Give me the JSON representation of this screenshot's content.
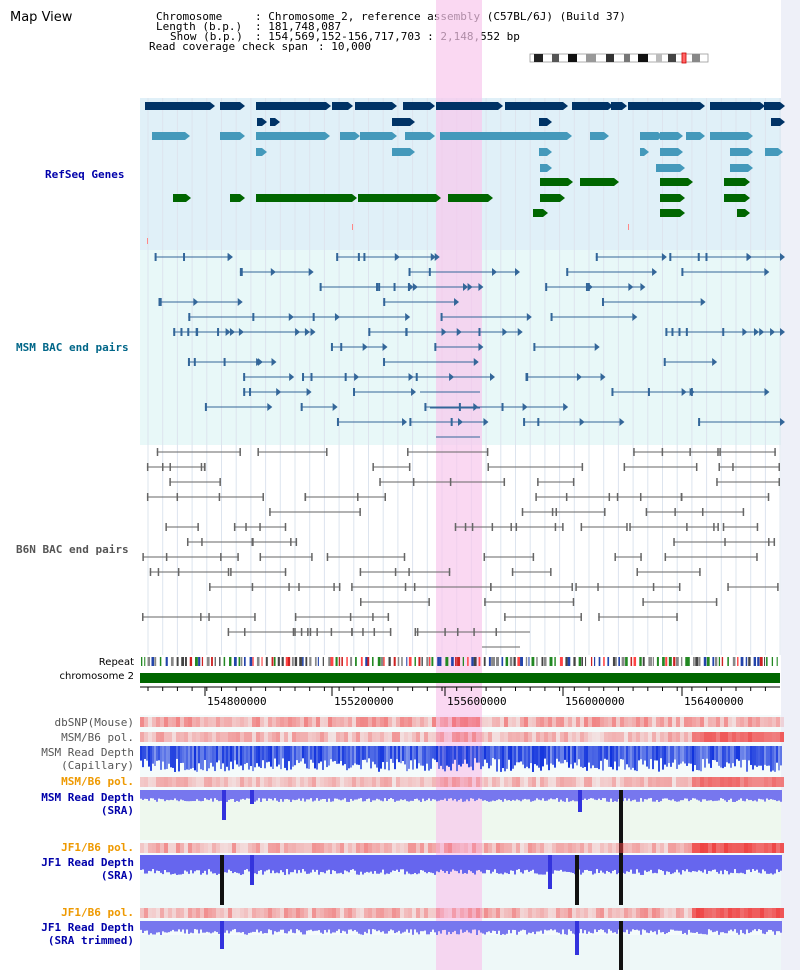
{
  "title": "Map View",
  "info": {
    "chromosome_label": "Chromosome",
    "chromosome_value": ": Chromosome 2, reference assembly (C57BL/6J) (Build 37)",
    "length_label": "Length (b.p.)",
    "length_value": ": 181,748,087",
    "show_label": "Show (b.p.)",
    "show_value": ": 154,569,152-156,717,703 : 2,148,552 bp",
    "read_coverage_label": "Read coverage check span",
    "read_coverage_value": ": 10,000"
  },
  "tracks": {
    "refseq": "RefSeq Genes",
    "msm_bac": "MSM BAC end pairs",
    "b6n_bac": "B6N BAC end pairs",
    "repeat": "Repeat",
    "chromosome": "chromosome 2"
  },
  "axis": {
    "ticks": [
      "154800000",
      "155200000",
      "155600000",
      "156000000",
      "156400000"
    ]
  },
  "signal_tracks": {
    "dbsnp": "dbSNP(Mouse)",
    "msm_b6_pol_1": "MSM/B6 pol.",
    "msm_read_depth_cap_1": "MSM Read Depth",
    "msm_read_depth_cap_2": "(Capillary)",
    "msm_b6_pol_2": "MSM/B6 pol.",
    "msm_read_depth_sra_1": "MSM Read Depth",
    "msm_read_depth_sra_2": "(SRA)",
    "jf1_b6_pol_1": "JF1/B6 pol.",
    "jf1_read_depth_sra_1": "JF1 Read Depth",
    "jf1_read_depth_sra_2": "(SRA)",
    "jf1_b6_pol_2": "JF1/B6 pol.",
    "jf1_read_depth_trim_1": "JF1 Read Depth",
    "jf1_read_depth_trim_2": "(SRA trimmed)"
  },
  "colors": {
    "refseq_bg": "#e0f0f8",
    "msm_bg": "#e8f8f8",
    "highlight": "#f8d8f0",
    "dark_gene": "#003366",
    "light_gene": "#4499bb",
    "green_gene": "#006600",
    "msm_line": "#336699",
    "b6n_line": "#666666",
    "chrom_bar": "#006600",
    "label_blue": "#0000aa",
    "label_teal": "#006688",
    "label_orange": "#ee9900"
  }
}
